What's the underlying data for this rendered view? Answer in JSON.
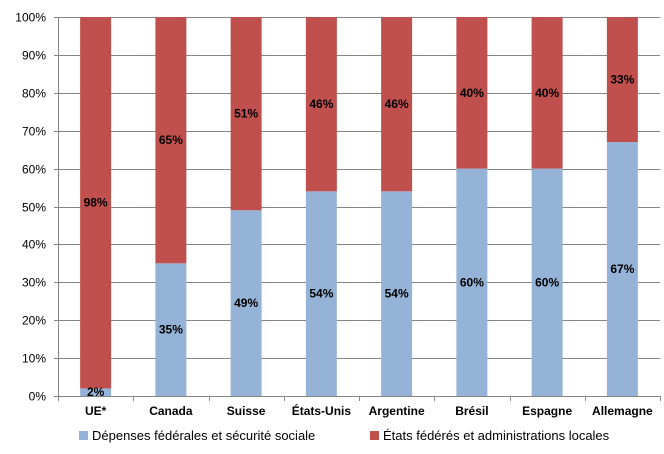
{
  "chart_data": {
    "type": "bar",
    "stacked": true,
    "percent": true,
    "categories": [
      "UE*",
      "Canada",
      "Suisse",
      "États-Unis",
      "Argentine",
      "Brésil",
      "Espagne",
      "Allemagne"
    ],
    "series": [
      {
        "name": "Dépenses fédérales et sécurité sociale",
        "color": "#95B3D7",
        "values": [
          2,
          35,
          49,
          54,
          54,
          60,
          60,
          67
        ],
        "labels": [
          "2%",
          "35%",
          "49%",
          "54%",
          "54%",
          "60%",
          "60%",
          "67%"
        ]
      },
      {
        "name": "États fédérés et administrations locales",
        "color": "#C0504D",
        "values": [
          98,
          65,
          51,
          46,
          46,
          40,
          40,
          33
        ],
        "labels": [
          "98%",
          "65%",
          "51%",
          "46%",
          "46%",
          "40%",
          "40%",
          "33%"
        ]
      }
    ],
    "y_ticks": [
      "0%",
      "10%",
      "20%",
      "30%",
      "40%",
      "50%",
      "60%",
      "70%",
      "80%",
      "90%",
      "100%"
    ],
    "ylim": [
      0,
      100
    ],
    "grid": true,
    "legend_position": "bottom",
    "title": "",
    "xlabel": "",
    "ylabel": ""
  }
}
